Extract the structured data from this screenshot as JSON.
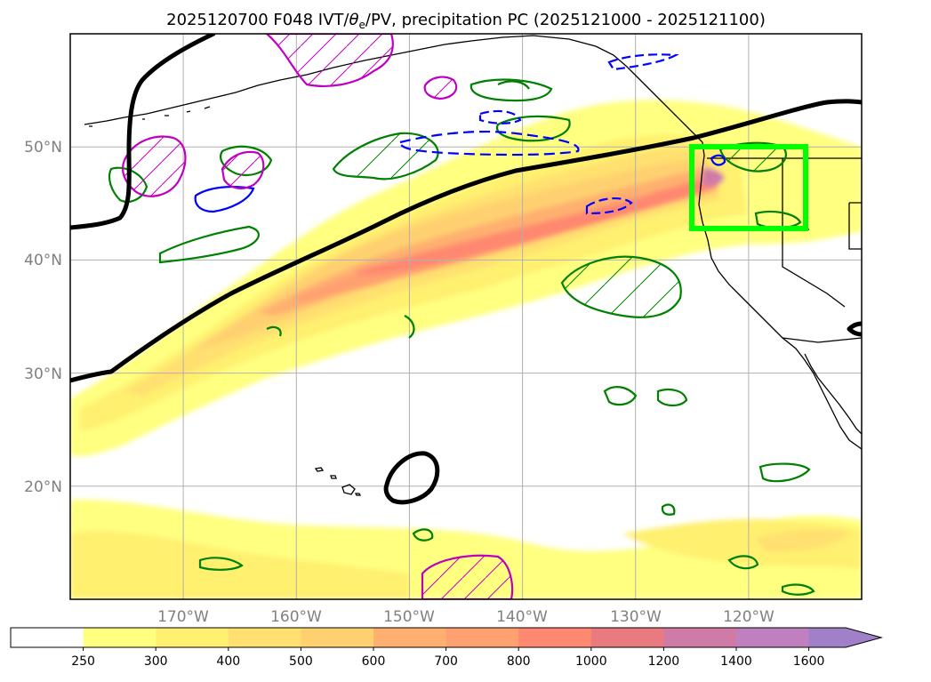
{
  "chart_data": {
    "type": "map",
    "title": "2025120700 F048 IVT/θe/PV, precipitation PC (2025121000 - 2025121100)",
    "title_parts": [
      "2025120700 F048 IVT/",
      "θ",
      "e",
      "/PV, precipitation PC (2025121000 - 2025121100)"
    ],
    "lon_range": [
      180,
      250
    ],
    "lat_range": [
      10,
      60
    ],
    "lat_ticks": [
      {
        "lat": 50,
        "label": "50°N"
      },
      {
        "lat": 40,
        "label": "40°N"
      },
      {
        "lat": 30,
        "label": "30°N"
      },
      {
        "lat": 20,
        "label": "20°N"
      }
    ],
    "lon_ticks": [
      {
        "lon": 190,
        "label": "170°W"
      },
      {
        "lon": 200,
        "label": "160°W"
      },
      {
        "lon": 210,
        "label": "150°W"
      },
      {
        "lon": 220,
        "label": "140°W"
      },
      {
        "lon": 230,
        "label": "130°W"
      },
      {
        "lon": 240,
        "label": "120°W"
      }
    ],
    "ivt_colorbar": {
      "levels": [
        250,
        300,
        400,
        500,
        600,
        700,
        800,
        1000,
        1200,
        1400,
        1600
      ],
      "labels": [
        "250",
        "300",
        "400",
        "500",
        "600",
        "700",
        "800",
        "1000",
        "1200",
        "1400",
        "1600"
      ],
      "colors": [
        "#ffffff",
        "#ffff80",
        "#fff070",
        "#ffe070",
        "#ffd070",
        "#ffb070",
        "#ffa070",
        "#ff8870",
        "#e87a80",
        "#d07aa8",
        "#c080c0",
        "#a080c8"
      ],
      "extend": "max"
    },
    "highlight_box": {
      "lon_min": 235,
      "lon_max": 245.5,
      "lat_min": 43,
      "lat_max": 50,
      "color": "#00ff00"
    },
    "colors": {
      "theta_e_line": "#000000",
      "pv_pos": "#c000c0",
      "pv_neg": "#0000ff",
      "precip": "#008000"
    }
  }
}
